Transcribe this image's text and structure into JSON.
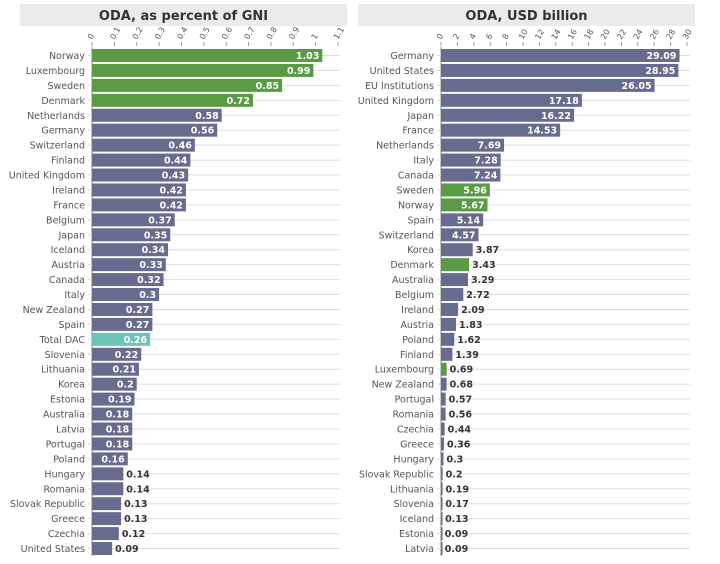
{
  "colors": {
    "highlight": "#5a9a45",
    "default": "#676b8e",
    "total": "#6cc4b6",
    "grid": "#dddddd",
    "title_bg": "#ebebeb"
  },
  "chart_data": [
    {
      "type": "bar",
      "orientation": "horizontal",
      "title": "ODA, as percent of GNI",
      "xlim": [
        0,
        1.1
      ],
      "ticks": [
        "0",
        "0.1",
        "0.2",
        "0.3",
        "0.4",
        "0.5",
        "0.6",
        "0.7",
        "0.8",
        "0.9",
        "1",
        "1.1"
      ],
      "categories": [
        "Norway",
        "Luxembourg",
        "Sweden",
        "Denmark",
        "Netherlands",
        "Germany",
        "Switzerland",
        "Finland",
        "United Kingdom",
        "Ireland",
        "France",
        "Belgium",
        "Japan",
        "Iceland",
        "Austria",
        "Canada",
        "Italy",
        "New Zealand",
        "Spain",
        "Total DAC",
        "Slovenia",
        "Lithuania",
        "Korea",
        "Estonia",
        "Australia",
        "Latvia",
        "Portugal",
        "Poland",
        "Hungary",
        "Romania",
        "Slovak Republic",
        "Greece",
        "Czechia",
        "United States"
      ],
      "values": [
        1.03,
        0.99,
        0.85,
        0.72,
        0.58,
        0.56,
        0.46,
        0.44,
        0.43,
        0.42,
        0.42,
        0.37,
        0.35,
        0.34,
        0.33,
        0.32,
        0.3,
        0.27,
        0.27,
        0.26,
        0.22,
        0.21,
        0.2,
        0.19,
        0.18,
        0.18,
        0.18,
        0.16,
        0.14,
        0.14,
        0.13,
        0.13,
        0.12,
        0.09
      ],
      "value_labels": [
        "1.03",
        "0.99",
        "0.85",
        "0.72",
        "0.58",
        "0.56",
        "0.46",
        "0.44",
        "0.43",
        "0.42",
        "0.42",
        "0.37",
        "0.35",
        "0.34",
        "0.33",
        "0.32",
        "0.3",
        "0.27",
        "0.27",
        "0.26",
        "0.22",
        "0.21",
        "0.2",
        "0.19",
        "0.18",
        "0.18",
        "0.18",
        "0.16",
        "0.14",
        "0.14",
        "0.13",
        "0.13",
        "0.12",
        "0.09"
      ],
      "highlighted": [
        "Norway",
        "Luxembourg",
        "Sweden",
        "Denmark"
      ],
      "total": [
        "Total DAC"
      ]
    },
    {
      "type": "bar",
      "orientation": "horizontal",
      "title": "ODA, USD billion",
      "xlim": [
        0,
        30
      ],
      "ticks": [
        "0",
        "2",
        "4",
        "6",
        "8",
        "10",
        "12",
        "14",
        "16",
        "18",
        "20",
        "22",
        "24",
        "26",
        "28",
        "30"
      ],
      "categories": [
        "Germany",
        "United States",
        "EU Institutions",
        "United Kingdom",
        "Japan",
        "France",
        "Netherlands",
        "Italy",
        "Canada",
        "Sweden",
        "Norway",
        "Spain",
        "Switzerland",
        "Korea",
        "Denmark",
        "Australia",
        "Belgium",
        "Ireland",
        "Austria",
        "Poland",
        "Finland",
        "Luxembourg",
        "New Zealand",
        "Portugal",
        "Romania",
        "Czechia",
        "Greece",
        "Hungary",
        "Slovak Republic",
        "Lithuania",
        "Slovenia",
        "Iceland",
        "Estonia",
        "Latvia"
      ],
      "values": [
        29.09,
        28.95,
        26.05,
        17.18,
        16.22,
        14.53,
        7.69,
        7.28,
        7.24,
        5.96,
        5.67,
        5.14,
        4.57,
        3.87,
        3.43,
        3.29,
        2.72,
        2.09,
        1.83,
        1.62,
        1.39,
        0.69,
        0.68,
        0.57,
        0.56,
        0.44,
        0.36,
        0.3,
        0.2,
        0.19,
        0.17,
        0.13,
        0.09,
        0.09
      ],
      "value_labels": [
        "29.09",
        "28.95",
        "26.05",
        "17.18",
        "16.22",
        "14.53",
        "7.69",
        "7.28",
        "7.24",
        "5.96",
        "5.67",
        "5.14",
        "4.57",
        "3.87",
        "3.43",
        "3.29",
        "2.72",
        "2.09",
        "1.83",
        "1.62",
        "1.39",
        "0.69",
        "0.68",
        "0.57",
        "0.56",
        "0.44",
        "0.36",
        "0.3",
        "0.2",
        "0.19",
        "0.17",
        "0.13",
        "0.09",
        "0.09"
      ],
      "highlighted": [
        "Sweden",
        "Norway",
        "Denmark",
        "Luxembourg"
      ],
      "total": []
    }
  ]
}
